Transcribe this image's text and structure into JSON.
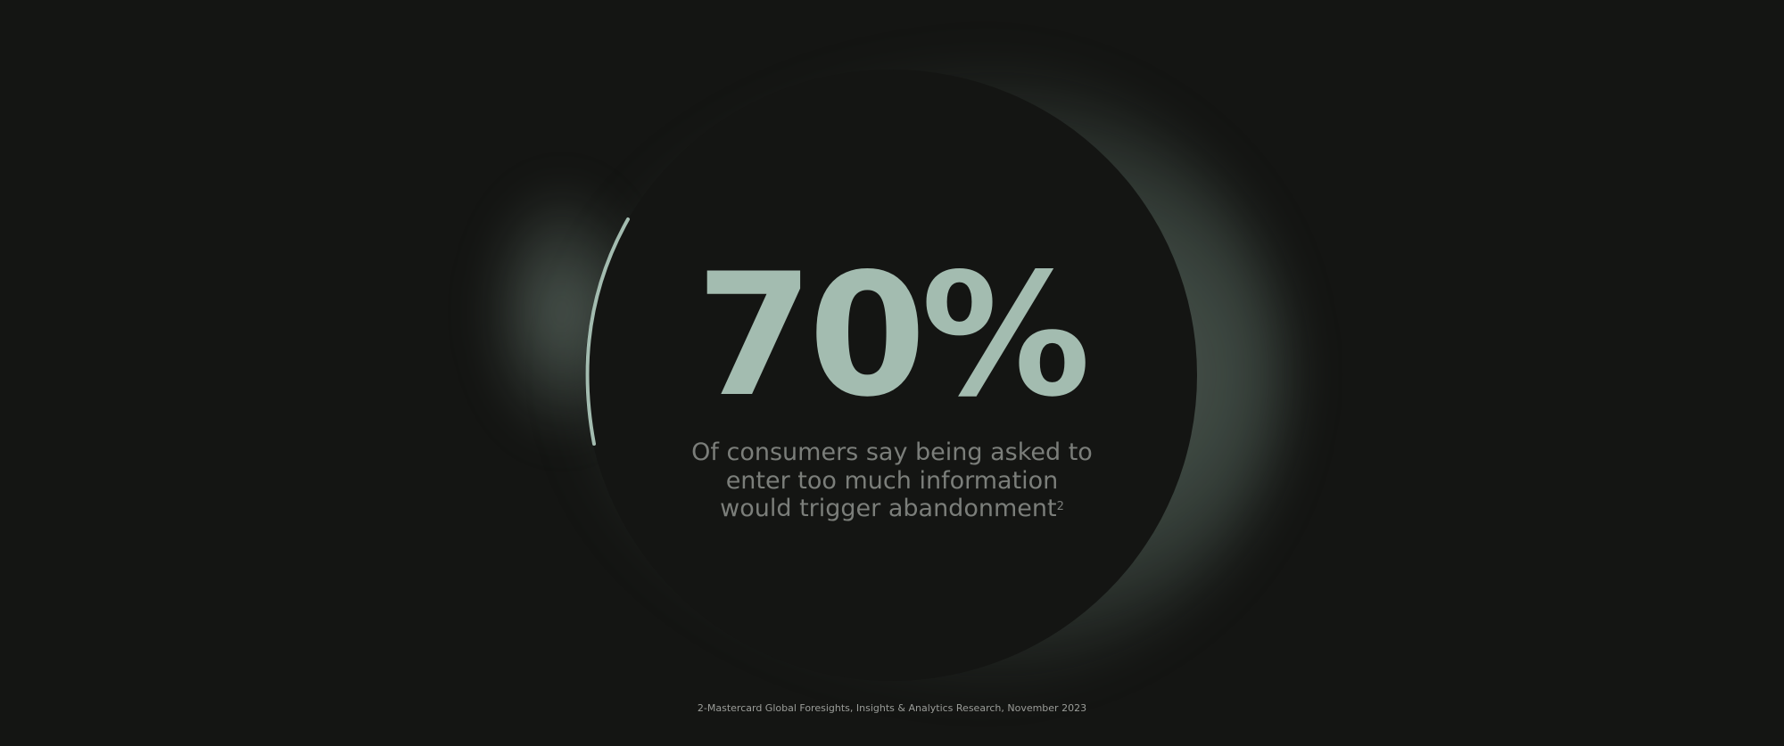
{
  "stat": {
    "value": "70%"
  },
  "description": {
    "text": "Of consumers say being asked to enter too much information would trigger abandonment",
    "footnote_marker": "2"
  },
  "footer": {
    "source": "2-Mastercard Global Foresights, Insights & Analytics Research, November 2023"
  },
  "colors": {
    "background": "#141513",
    "accent": "#a3bcb0",
    "text_muted": "#7b7e7a"
  }
}
